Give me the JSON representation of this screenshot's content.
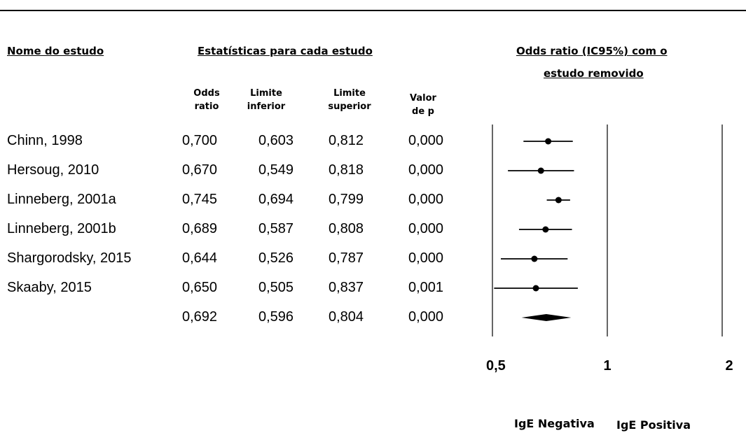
{
  "headers": {
    "study_name": "Nome do estudo",
    "statistics": "Estatísticas para cada estudo",
    "plot_title_line1": "Odds ratio (IC95%) com o",
    "plot_title_line2": "estudo removido"
  },
  "subheaders": {
    "odds_ratio": "Odds\nratio",
    "lower": "Limite\ninferior",
    "upper": "Limite\nsuperior",
    "p_value": "Valor\nde p"
  },
  "favor_labels": {
    "left": "IgE Negativa",
    "right": "IgE Positiva"
  },
  "chart_data": {
    "type": "forest",
    "x_scale": "log",
    "xlim": [
      0.5,
      2
    ],
    "x_ticks": [
      "0,5",
      "1",
      "2"
    ],
    "reference_lines": [
      0.5,
      1,
      2
    ],
    "rows": [
      {
        "study": "Chinn, 1998",
        "or": "0,700",
        "lower": "0,603",
        "upper": "0,812",
        "p": "0,000",
        "or_value": 0.7,
        "lower_value": 0.603,
        "upper_value": 0.812
      },
      {
        "study": "Hersoug, 2010",
        "or": "0,670",
        "lower": "0,549",
        "upper": "0,818",
        "p": "0,000",
        "or_value": 0.67,
        "lower_value": 0.549,
        "upper_value": 0.818
      },
      {
        "study": "Linneberg, 2001a",
        "or": "0,745",
        "lower": "0,694",
        "upper": "0,799",
        "p": "0,000",
        "or_value": 0.745,
        "lower_value": 0.694,
        "upper_value": 0.799
      },
      {
        "study": "Linneberg, 2001b",
        "or": "0,689",
        "lower": "0,587",
        "upper": "0,808",
        "p": "0,000",
        "or_value": 0.689,
        "lower_value": 0.587,
        "upper_value": 0.808
      },
      {
        "study": "Shargorodsky, 2015",
        "or": "0,644",
        "lower": "0,526",
        "upper": "0,787",
        "p": "0,000",
        "or_value": 0.644,
        "lower_value": 0.526,
        "upper_value": 0.787
      },
      {
        "study": "Skaaby, 2015",
        "or": "0,650",
        "lower": "0,505",
        "upper": "0,837",
        "p": "0,001",
        "or_value": 0.65,
        "lower_value": 0.505,
        "upper_value": 0.837
      }
    ],
    "summary": {
      "study": "",
      "or": "0,692",
      "lower": "0,596",
      "upper": "0,804",
      "p": "0,000",
      "or_value": 0.692,
      "lower_value": 0.596,
      "upper_value": 0.804
    }
  }
}
